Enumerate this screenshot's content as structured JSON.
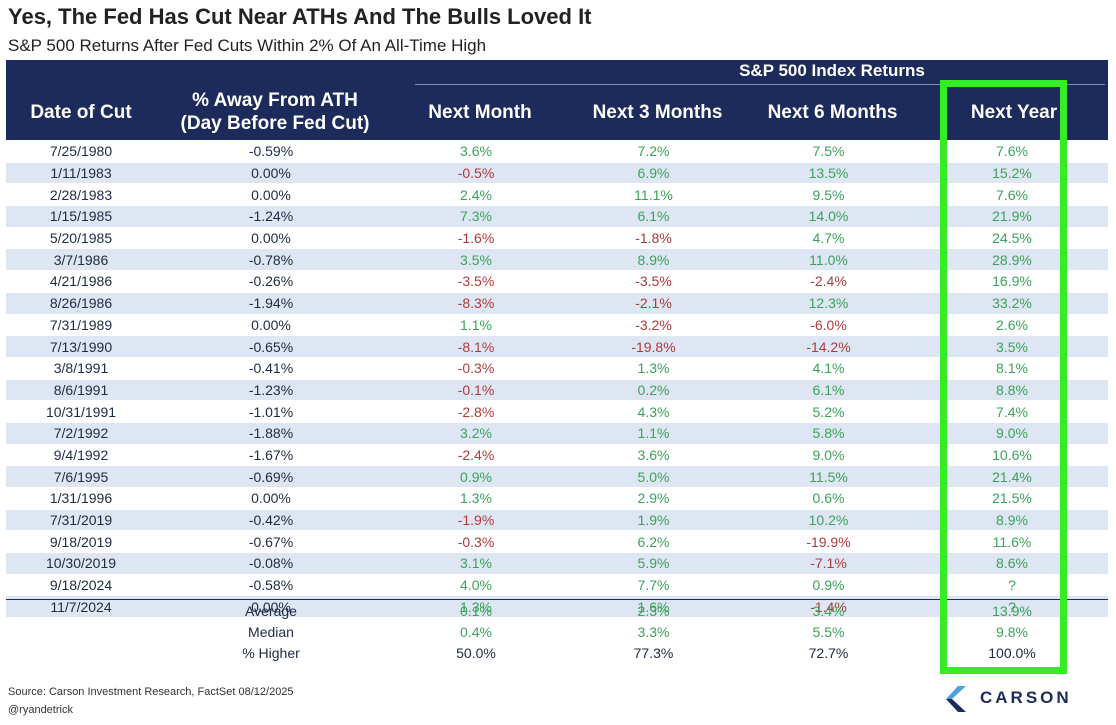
{
  "title": "Yes, The Fed Has Cut Near ATHs And The Bulls Loved It",
  "subtitle": "S&P 500 Returns After Fed Cuts Within 2% Of An All-Time High",
  "chart_data": {
    "type": "table",
    "group_header": "S&P 500 Index Returns",
    "columns": [
      "Date of Cut",
      "% Away From ATH (Day Before Fed Cut)",
      "Next Month",
      "Next 3 Months",
      "Next 6 Months",
      "Next Year"
    ],
    "column_lines": {
      "date": [
        "Date of Cut"
      ],
      "ath": [
        "% Away From ATH",
        "(Day Before Fed Cut)"
      ],
      "m1": [
        "Next Month"
      ],
      "m3": [
        "Next 3 Months"
      ],
      "m6": [
        "Next 6 Months"
      ],
      "y1": [
        "Next Year"
      ]
    },
    "rows": [
      [
        "7/25/1980",
        "-0.59%",
        "3.6%",
        "7.2%",
        "7.5%",
        "7.6%"
      ],
      [
        "1/11/1983",
        "0.00%",
        "-0.5%",
        "6.9%",
        "13.5%",
        "15.2%"
      ],
      [
        "2/28/1983",
        "0.00%",
        "2.4%",
        "11.1%",
        "9.5%",
        "7.6%"
      ],
      [
        "1/15/1985",
        "-1.24%",
        "7.3%",
        "6.1%",
        "14.0%",
        "21.9%"
      ],
      [
        "5/20/1985",
        "0.00%",
        "-1.6%",
        "-1.8%",
        "4.7%",
        "24.5%"
      ],
      [
        "3/7/1986",
        "-0.78%",
        "3.5%",
        "8.9%",
        "11.0%",
        "28.9%"
      ],
      [
        "4/21/1986",
        "-0.26%",
        "-3.5%",
        "-3.5%",
        "-2.4%",
        "16.9%"
      ],
      [
        "8/26/1986",
        "-1.94%",
        "-8.3%",
        "-2.1%",
        "12.3%",
        "33.2%"
      ],
      [
        "7/31/1989",
        "0.00%",
        "1.1%",
        "-3.2%",
        "-6.0%",
        "2.6%"
      ],
      [
        "7/13/1990",
        "-0.65%",
        "-8.1%",
        "-19.8%",
        "-14.2%",
        "3.5%"
      ],
      [
        "3/8/1991",
        "-0.41%",
        "-0.3%",
        "1.3%",
        "4.1%",
        "8.1%"
      ],
      [
        "8/6/1991",
        "-1.23%",
        "-0.1%",
        "0.2%",
        "6.1%",
        "8.8%"
      ],
      [
        "10/31/1991",
        "-1.01%",
        "-2.8%",
        "4.3%",
        "5.2%",
        "7.4%"
      ],
      [
        "7/2/1992",
        "-1.88%",
        "3.2%",
        "1.1%",
        "5.8%",
        "9.0%"
      ],
      [
        "9/4/1992",
        "-1.67%",
        "-2.4%",
        "3.6%",
        "9.0%",
        "10.6%"
      ],
      [
        "7/6/1995",
        "-0.69%",
        "0.9%",
        "5.0%",
        "11.5%",
        "21.4%"
      ],
      [
        "1/31/1996",
        "0.00%",
        "1.3%",
        "2.9%",
        "0.6%",
        "21.5%"
      ],
      [
        "7/31/2019",
        "-0.42%",
        "-1.9%",
        "1.9%",
        "10.2%",
        "8.9%"
      ],
      [
        "9/18/2019",
        "-0.67%",
        "-0.3%",
        "6.2%",
        "-19.9%",
        "11.6%"
      ],
      [
        "10/30/2019",
        "-0.08%",
        "3.1%",
        "5.9%",
        "-7.1%",
        "8.6%"
      ],
      [
        "9/18/2024",
        "-0.58%",
        "4.0%",
        "7.7%",
        "0.9%",
        "?"
      ],
      [
        "11/7/2024",
        "0.00%",
        "1.3%",
        "1.6%",
        "-1.4%",
        "?"
      ]
    ],
    "summary": [
      [
        "Average",
        "0.1%",
        "2.3%",
        "3.4%",
        "13.9%"
      ],
      [
        "Median",
        "0.4%",
        "3.3%",
        "5.5%",
        "9.8%"
      ],
      [
        "% Higher",
        "50.0%",
        "77.3%",
        "72.7%",
        "100.0%"
      ]
    ],
    "highlighted_column": "Next Year"
  },
  "footer": {
    "source": "Source: Carson Investment Research, FactSet 08/12/2025",
    "handle": "@ryandetrick"
  },
  "logo": {
    "text": "CARSON"
  },
  "colors": {
    "header_bg": "#1c2b5b",
    "positive": "#3aa35a",
    "negative": "#b03a3a",
    "stripe": "#dde6f2",
    "highlight_border": "#33ee22"
  }
}
